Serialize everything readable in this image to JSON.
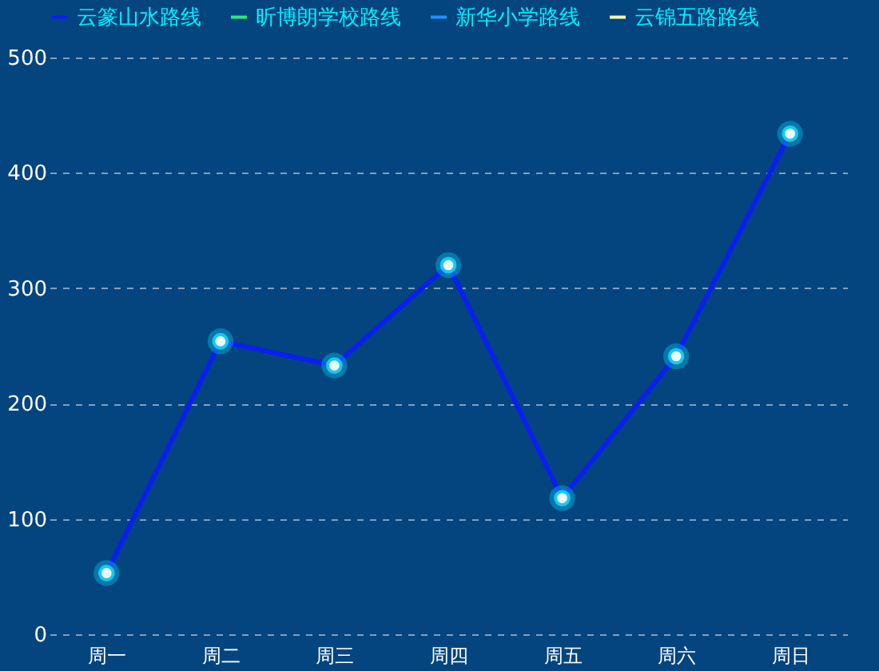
{
  "chart_data": {
    "type": "line",
    "categories": [
      "周一",
      "周二",
      "周三",
      "周四",
      "周五",
      "周六",
      "周日"
    ],
    "series": [
      {
        "name": "云篆山水路线",
        "color": "#0a1ef0",
        "values": [
          53,
          254,
          233,
          320,
          118,
          241,
          434
        ]
      },
      {
        "name": "昕博朗学校路线",
        "color": "#2ee87a",
        "values": [
          null,
          null,
          null,
          null,
          null,
          null,
          null
        ]
      },
      {
        "name": "新华小学路线",
        "color": "#1e90ff",
        "values": [
          null,
          null,
          null,
          null,
          null,
          null,
          null
        ]
      },
      {
        "name": "云锦五路路线",
        "color": "#f0f5b0",
        "values": [
          null,
          null,
          null,
          null,
          null,
          null,
          null
        ]
      }
    ],
    "ylim": [
      0,
      500
    ],
    "yticks": [
      0,
      100,
      200,
      300,
      400,
      500
    ],
    "grid": "y",
    "legend": "top",
    "marker": "circle",
    "line_style": "solid"
  }
}
